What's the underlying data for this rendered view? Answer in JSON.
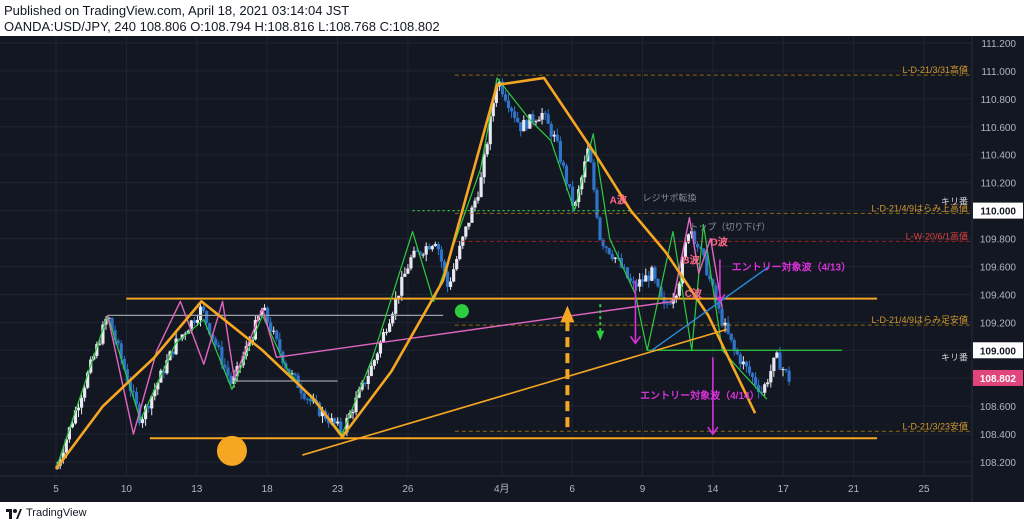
{
  "header": {
    "published": "Published on TradingView.com, April 18, 2021 03:14:04 JST",
    "symbol_line": "OANDA:USD/JPY, 240 108.806 O:108.794 H:108.816 L:108.768 C:108.802"
  },
  "footer": {
    "brand": "TradingView"
  },
  "colors": {
    "background": "#131722",
    "grid": "#1f2433",
    "candle_up": "#e8e8f0",
    "candle_down": "#2f74c9",
    "orange": "#f5a623",
    "green": "#2ecc40",
    "pink": "#e066c0",
    "magenta": "#d832d8",
    "blue_line": "#2a8ad8",
    "price_badge": "#e0457b",
    "level_orange": "#b8860b",
    "level_red": "#cc2222",
    "axis_text": "#b2b5be"
  },
  "chart_data": {
    "type": "candlestick",
    "symbol": "OANDA:USD/JPY",
    "timeframe": "240",
    "ylim": [
      108.1,
      111.25
    ],
    "y_ticks": [
      108.2,
      108.4,
      108.6,
      108.8,
      109.0,
      109.2,
      109.4,
      109.6,
      109.8,
      110.0,
      110.2,
      110.4,
      110.6,
      110.8,
      111.0,
      111.2
    ],
    "y_tick_labels": [
      "108.200",
      "108.400",
      "108.600",
      "108.800",
      "109.000",
      "109.200",
      "109.400",
      "109.600",
      "109.800",
      "110.000",
      "110.200",
      "110.400",
      "110.600",
      "110.800",
      "111.000",
      "111.200"
    ],
    "x_ticks": [
      {
        "label": "5",
        "t": 0
      },
      {
        "label": "10",
        "t": 3
      },
      {
        "label": "13",
        "t": 6
      },
      {
        "label": "18",
        "t": 9
      },
      {
        "label": "23",
        "t": 12
      },
      {
        "label": "26",
        "t": 15
      },
      {
        "label": "4月",
        "t": 19
      },
      {
        "label": "6",
        "t": 22
      },
      {
        "label": "9",
        "t": 25
      },
      {
        "label": "14",
        "t": 28
      },
      {
        "label": "17",
        "t": 31
      },
      {
        "label": "21",
        "t": 34
      },
      {
        "label": "25",
        "t": 37
      }
    ],
    "last_price": "108.802",
    "round_number_label": "キリ番",
    "round_number_tag": "109.000",
    "top_round_tag": "110.000",
    "swing_path": [
      [
        0,
        108.15
      ],
      [
        2.2,
        109.25
      ],
      [
        3.6,
        108.5
      ],
      [
        5.1,
        109.05
      ],
      [
        6.2,
        109.3
      ],
      [
        7.5,
        108.75
      ],
      [
        8.8,
        109.3
      ],
      [
        9.9,
        108.85
      ],
      [
        11.0,
        108.6
      ],
      [
        12.2,
        108.42
      ],
      [
        13.5,
        108.9
      ],
      [
        15.1,
        109.65
      ],
      [
        16.2,
        109.8
      ],
      [
        16.7,
        109.45
      ],
      [
        18.1,
        110.2
      ],
      [
        18.8,
        110.95
      ],
      [
        19.8,
        110.6
      ],
      [
        20.7,
        110.7
      ],
      [
        21.3,
        110.5
      ],
      [
        22.1,
        110.0
      ],
      [
        22.7,
        110.45
      ],
      [
        23.2,
        109.8
      ],
      [
        23.9,
        109.65
      ],
      [
        24.6,
        109.45
      ],
      [
        25.4,
        109.55
      ],
      [
        25.9,
        109.3
      ],
      [
        26.5,
        109.45
      ],
      [
        27.0,
        109.9
      ],
      [
        27.7,
        109.6
      ],
      [
        28.3,
        109.25
      ],
      [
        28.9,
        109.0
      ],
      [
        29.5,
        108.85
      ],
      [
        30.1,
        108.7
      ],
      [
        30.7,
        108.95
      ],
      [
        31.3,
        108.78
      ]
    ],
    "levels": [
      {
        "label": "L-D-21/3/31高値",
        "value": 110.97,
        "color": "orange"
      },
      {
        "label": "L-D-21/4/9はらみ上高値",
        "value": 109.98,
        "color": "orange"
      },
      {
        "label": "L-W-20/6/1高値",
        "value": 109.78,
        "color": "red"
      },
      {
        "label": "L-D-21/4/9はらみ足安値",
        "value": 109.18,
        "color": "orange"
      },
      {
        "label": "L-D-21/3/23安値",
        "value": 108.42,
        "color": "orange"
      }
    ],
    "horizontals": [
      {
        "name": "upper-range",
        "value": 109.37,
        "t_from": 3.0,
        "t_to": 35.0,
        "color": "orange"
      },
      {
        "name": "lower-range",
        "value": 108.37,
        "t_from": 4.0,
        "t_to": 35.0,
        "color": "orange"
      },
      {
        "name": "kiri-green",
        "value": 109.0,
        "t_from": 25.2,
        "t_to": 33.5,
        "color": "green"
      },
      {
        "name": "range-top-grey",
        "value": 109.25,
        "t_from": 2.2,
        "t_to": 16.5,
        "color": "grey"
      },
      {
        "name": "range-bottom-grey",
        "value": 108.78,
        "t_from": 7.5,
        "t_to": 12.0,
        "color": "grey"
      },
      {
        "name": "resist-dots",
        "value": 110.0,
        "t_from": 15.2,
        "t_to": 24.5,
        "color": "green"
      }
    ],
    "orange_waves": [
      [
        [
          0,
          108.15
        ],
        [
          2.0,
          108.6
        ],
        [
          4.2,
          108.95
        ],
        [
          6.2,
          109.35
        ],
        [
          8.8,
          109.0
        ],
        [
          11.0,
          108.65
        ],
        [
          12.2,
          108.38
        ],
        [
          14.3,
          108.85
        ],
        [
          16.5,
          109.5
        ],
        [
          18.8,
          110.9
        ],
        [
          20.8,
          110.95
        ],
        [
          23.0,
          110.4
        ],
        [
          24.5,
          110.0
        ],
        [
          26.0,
          109.7
        ],
        [
          27.8,
          109.25
        ],
        [
          29.8,
          108.55
        ]
      ]
    ],
    "orange_trend": [
      [
        10.5,
        108.25
      ],
      [
        28.6,
        109.15
      ]
    ],
    "green_zigzag": [
      [
        0,
        108.15
      ],
      [
        2.2,
        109.25
      ],
      [
        3.6,
        108.5
      ],
      [
        5.1,
        109.05
      ],
      [
        6.3,
        109.22
      ],
      [
        7.5,
        108.72
      ],
      [
        8.8,
        109.25
      ],
      [
        9.9,
        108.85
      ],
      [
        12.2,
        108.4
      ],
      [
        13.5,
        108.95
      ],
      [
        15.2,
        109.85
      ],
      [
        16.1,
        109.35
      ],
      [
        18.1,
        110.3
      ],
      [
        18.8,
        110.95
      ],
      [
        20.2,
        110.65
      ],
      [
        21.1,
        110.5
      ],
      [
        22.1,
        110.0
      ],
      [
        22.9,
        110.55
      ],
      [
        23.6,
        109.8
      ],
      [
        24.7,
        109.4
      ],
      [
        25.2,
        109.0
      ],
      [
        26.3,
        109.85
      ],
      [
        27.1,
        109.0
      ],
      [
        27.6,
        109.9
      ],
      [
        28.4,
        109.0
      ],
      [
        29.2,
        108.85
      ],
      [
        30.3,
        108.65
      ]
    ],
    "pink_zigzag": [
      [
        2.2,
        109.25
      ],
      [
        3.3,
        108.4
      ],
      [
        4.3,
        109.0
      ],
      [
        5.3,
        109.35
      ],
      [
        6.3,
        108.9
      ],
      [
        7.1,
        109.35
      ],
      [
        7.6,
        108.8
      ],
      [
        8.8,
        109.3
      ],
      [
        9.4,
        108.95
      ],
      [
        26.3,
        109.35
      ],
      [
        27.0,
        109.95
      ],
      [
        27.4,
        109.55
      ],
      [
        27.9,
        109.8
      ],
      [
        28.4,
        109.3
      ]
    ],
    "blue_line": [
      [
        25.4,
        109.0
      ],
      [
        30.4,
        109.6
      ]
    ],
    "wave_labels": [
      {
        "label": "A波",
        "t": 23.6,
        "v": 110.05
      },
      {
        "label": "B波",
        "t": 26.7,
        "v": 109.62
      },
      {
        "label": "D波",
        "t": 27.9,
        "v": 109.75
      },
      {
        "label": "C波",
        "t": 26.8,
        "v": 109.38
      }
    ],
    "annotations": [
      {
        "label": "レジサポ転換",
        "t": 25.0,
        "v": 110.07,
        "color": "grey"
      },
      {
        "label": "トップ（切り下げ）",
        "t": 27.0,
        "v": 109.86,
        "color": "grey"
      },
      {
        "label": "エントリー対象波（4/13）",
        "t": 28.8,
        "v": 109.57,
        "color": "magenta"
      },
      {
        "label": "エントリー対象波（4/14）",
        "t": 24.9,
        "v": 108.65,
        "color": "magenta"
      }
    ]
  }
}
